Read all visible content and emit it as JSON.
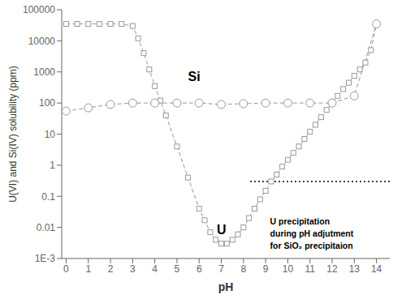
{
  "chart_data": {
    "type": "line",
    "xlabel": "pH",
    "ylabel": "U(VI) and Si(IV) solubility (ppm)",
    "log": "y",
    "grid": false,
    "xlim": [
      -0.2,
      14.6
    ],
    "xticks": [
      0,
      1,
      2,
      3,
      4,
      5,
      6,
      7,
      8,
      9,
      10,
      11,
      12,
      13,
      14
    ],
    "ylim": [
      0.001,
      100000
    ],
    "yticks": [
      {
        "value": 0.001,
        "label": "1E-3"
      },
      0.01,
      0.1,
      1,
      10,
      100,
      1000,
      10000,
      100000
    ],
    "series": [
      {
        "x": [
          0,
          0.5,
          1,
          1.5,
          2,
          2.5,
          3,
          3.25,
          3.5,
          3.75,
          4,
          4.25,
          4.5,
          5,
          5.5,
          6,
          6.25,
          6.5,
          6.75,
          7,
          7.25,
          7.5,
          7.75,
          8,
          8.25,
          8.5,
          8.75,
          9,
          9.25,
          9.5,
          9.75,
          10,
          10.25,
          10.5,
          10.75,
          11,
          11.25,
          11.5,
          11.75,
          12,
          12.25,
          12.5,
          12.75,
          13,
          13.25,
          13.5,
          13.75,
          14
        ],
        "values": [
          35000,
          35000,
          35000,
          35000,
          35000,
          35000,
          30000,
          12000,
          4000,
          1200,
          350,
          120,
          40,
          4,
          0.4,
          0.04,
          0.017,
          0.007,
          0.004,
          0.003,
          0.003,
          0.004,
          0.006,
          0.01,
          0.02,
          0.04,
          0.08,
          0.15,
          0.3,
          0.5,
          0.9,
          1.5,
          2.5,
          4,
          7,
          12,
          20,
          35,
          60,
          100,
          170,
          280,
          450,
          750,
          1200,
          2000,
          5000,
          35000
        ],
        "color": "#999999",
        "marker": "square",
        "line_style": "dashed"
      },
      {
        "x": [
          0,
          1,
          2,
          3,
          4,
          5,
          6,
          7,
          8,
          9,
          10,
          11,
          12,
          13,
          14
        ],
        "values": [
          55,
          70,
          90,
          100,
          100,
          100,
          100,
          90,
          95,
          100,
          100,
          100,
          100,
          170,
          35000
        ],
        "color": "#999999",
        "marker": "circle",
        "line_style": "dashed"
      },
      {
        "x": [
          8.3,
          14.6
        ],
        "values": [
          0.3,
          0.3
        ],
        "color": "#000000",
        "marker": "none",
        "line_style": "dotted"
      }
    ],
    "annotations": [
      {
        "text": "Si",
        "x": 5.5,
        "y": 500
      },
      {
        "text": "U",
        "x": 6.8,
        "y": 0.006
      },
      {
        "text": "U precipitation\nduring pH adjutment\nfor SiO₂ precipitaion",
        "x": 9.2,
        "y": 0.022
      }
    ]
  }
}
